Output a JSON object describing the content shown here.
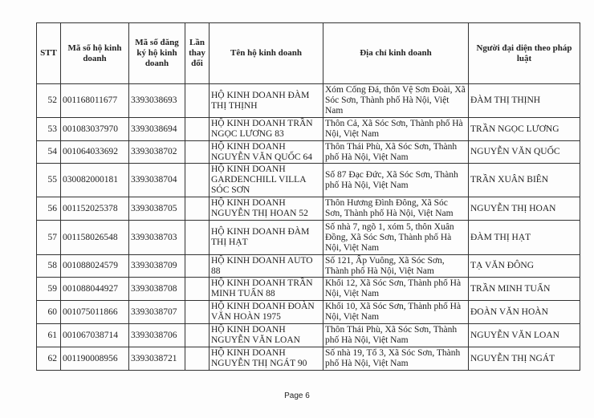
{
  "table": {
    "headers": {
      "stt": "STT",
      "business_code": "Mã số hộ kinh doanh",
      "registration_code": "Mã số đăng ký hộ kinh doanh",
      "change_count": "Lần thay đổi",
      "name": "Tên hộ kinh doanh",
      "address": "Địa chỉ kinh doanh",
      "representative": "Người đại diện theo pháp luật"
    },
    "rows": [
      {
        "stt": "52",
        "business_code": "001168011677",
        "registration_code": "3393038693",
        "name": "HỘ KINH DOANH ĐÀM THỊ THỊNH",
        "address": "Xóm Cống Đá, thôn Vệ Sơn Đoài, Xã Sóc Sơn, Thành phố Hà Nội, Việt Nam",
        "representative": "ĐÀM THỊ THỊNH"
      },
      {
        "stt": "53",
        "business_code": "001083037970",
        "registration_code": "3393038694",
        "name": "HỘ KINH DOANH TRẦN NGỌC LƯƠNG 83",
        "address": "Thôn Cả, Xã Sóc Sơn, Thành phố Hà Nội, Việt Nam",
        "representative": "TRẦN NGỌC LƯƠNG"
      },
      {
        "stt": "54",
        "business_code": "001064033692",
        "registration_code": "3393038702",
        "name": "HỘ KINH DOANH NGUYỄN VĂN QUỐC 64",
        "address": "Thôn Thái Phù, Xã Sóc Sơn, Thành phố Hà Nội, Việt Nam",
        "representative": "NGUYỄN VĂN QUỐC"
      },
      {
        "stt": "55",
        "business_code": "030082000181",
        "registration_code": "3393038704",
        "name": "HỘ KINH DOANH GARDENCHILL VILLA SÓC SƠN",
        "address": "Số 87 Đạc Đức, Xã Sóc Sơn, Thành phố Hà Nội, Việt Nam",
        "representative": "TRẦN XUÂN BIÊN"
      },
      {
        "stt": "56",
        "business_code": "001152025378",
        "registration_code": "3393038705",
        "name": "HỘ KINH DOANH NGUYỄN THỊ HOAN 52",
        "address": "Thôn Hương Đình Đông, Xã Sóc Sơn, Thành phố Hà Nội, Việt Nam",
        "representative": "NGUYỄN THỊ HOAN"
      },
      {
        "stt": "57",
        "business_code": "001158026548",
        "registration_code": "3393038703",
        "name": "HỘ KINH DOANH ĐÀM THỊ HẠT",
        "address": "Số nhà 7, ngõ 1, xóm 5, thôn Xuân Đồng, Xã Sóc Sơn, Thành phố Hà Nội, Việt Nam",
        "representative": "ĐÀM THỊ HẠT"
      },
      {
        "stt": "58",
        "business_code": "001088024579",
        "registration_code": "3393038709",
        "name": "HỘ KINH DOANH AUTO 88",
        "address": "Số 121, Ấp Vuông, Xã Sóc Sơn, Thành phố Hà Nội, Việt Nam",
        "representative": "TẠ VĂN ĐÔNG"
      },
      {
        "stt": "59",
        "business_code": "001088044927",
        "registration_code": "3393038708",
        "name": "HỘ KINH DOANH TRẦN MINH TUẤN 88",
        "address": "Khối 12, Xã Sóc Sơn, Thành phố Hà Nội, Việt Nam",
        "representative": "TRẦN MINH TUẤN"
      },
      {
        "stt": "60",
        "business_code": "001075011866",
        "registration_code": "3393038707",
        "name": "HỘ KINH DOANH ĐOÀN VĂN HOÀN 1975",
        "address": "Khối 10, Xã Sóc Sơn, Thành phố Hà Nội, Việt Nam",
        "representative": "ĐOÀN VĂN HOÀN"
      },
      {
        "stt": "61",
        "business_code": "001067038714",
        "registration_code": "3393038706",
        "name": "HỘ KINH DOANH NGUYỄN VĂN LOAN",
        "address": "Thôn Thái Phù, Xã Sóc Sơn, Thành phố Hà Nội, Việt Nam",
        "representative": "NGUYỄN VĂN LOAN"
      },
      {
        "stt": "62",
        "business_code": "001190008956",
        "registration_code": "3393038721",
        "name": "HỘ KINH DOANH NGUYỄN THỊ NGÁT 90",
        "address": "Số nhà 19, Tổ 3, Xã Sóc Sơn, Thành phố Hà Nội, Việt Nam",
        "representative": "NGUYỄN THỊ NGÁT"
      }
    ]
  },
  "footer": {
    "page": "Page 6"
  }
}
